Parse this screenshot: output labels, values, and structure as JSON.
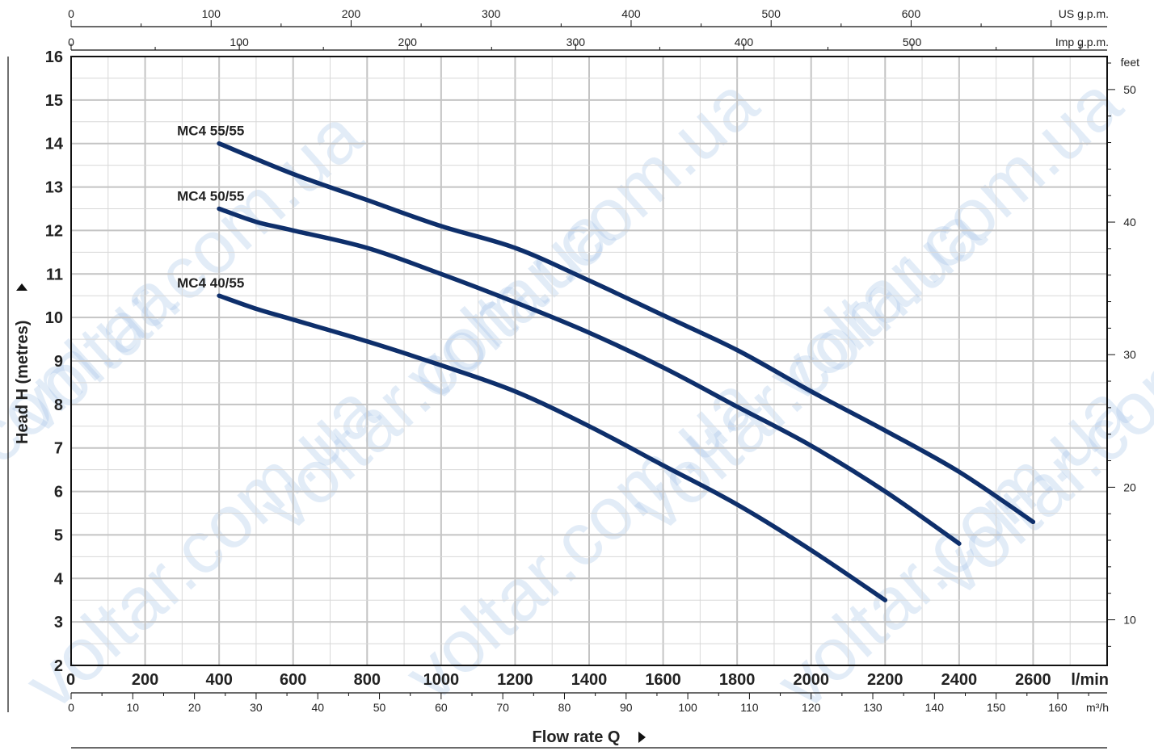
{
  "chart_data": {
    "type": "line",
    "title": "",
    "xlabel": "Flow rate Q",
    "ylabel": "Head H  (metres)",
    "x_unit": "l/min",
    "xlim": [
      0,
      2800
    ],
    "ylim": [
      2,
      16
    ],
    "x_ticks": [
      "0",
      "200",
      "400",
      "600",
      "800",
      "1000",
      "1200",
      "1400",
      "1600",
      "1800",
      "2000",
      "2200",
      "2400",
      "2600"
    ],
    "y_ticks": [
      "2",
      "3",
      "4",
      "5",
      "6",
      "7",
      "8",
      "9",
      "10",
      "11",
      "12",
      "13",
      "14",
      "15",
      "16"
    ],
    "grid": true,
    "series": [
      {
        "name": "MC4 55/55",
        "x": [
          400,
          600,
          800,
          1000,
          1200,
          1400,
          1600,
          1800,
          2000,
          2200,
          2400,
          2600
        ],
        "y": [
          14.0,
          13.3,
          12.7,
          12.1,
          11.6,
          10.85,
          10.05,
          9.25,
          8.3,
          7.4,
          6.45,
          5.3
        ]
      },
      {
        "name": "MC4 50/55",
        "x": [
          400,
          500,
          600,
          800,
          1000,
          1200,
          1400,
          1600,
          1800,
          2000,
          2200,
          2400
        ],
        "y": [
          12.5,
          12.2,
          12.0,
          11.6,
          11.0,
          10.35,
          9.65,
          8.85,
          7.95,
          7.05,
          6.0,
          4.8
        ]
      },
      {
        "name": "MC4 40/55",
        "x": [
          400,
          500,
          600,
          800,
          1000,
          1200,
          1400,
          1600,
          1800,
          2000,
          2200
        ],
        "y": [
          10.5,
          10.2,
          9.95,
          9.45,
          8.9,
          8.3,
          7.5,
          6.6,
          5.7,
          4.65,
          3.5
        ]
      }
    ],
    "secondary_axes": {
      "us_gpm": {
        "label": "US g.p.m.",
        "ticks": [
          "0",
          "100",
          "200",
          "300",
          "400",
          "500",
          "600"
        ],
        "max": 740
      },
      "imp_gpm": {
        "label": "Imp g.p.m.",
        "ticks": [
          "0",
          "100",
          "200",
          "300",
          "400",
          "500"
        ],
        "max": 616
      },
      "feet": {
        "label": "feet",
        "ticks": [
          "10",
          "20",
          "30",
          "40",
          "50"
        ],
        "min": 6.56,
        "max": 52.49
      },
      "m3h": {
        "label": "m³/h",
        "ticks": [
          "0",
          "10",
          "20",
          "30",
          "40",
          "50",
          "60",
          "70",
          "80",
          "90",
          "100",
          "110",
          "120",
          "130",
          "140",
          "150",
          "160"
        ],
        "max": 168
      }
    },
    "colors": {
      "curve": "#0e2f6b",
      "grid": "#c8c8c8",
      "frame": "#111111"
    }
  },
  "watermark": "voltar.com.ua"
}
